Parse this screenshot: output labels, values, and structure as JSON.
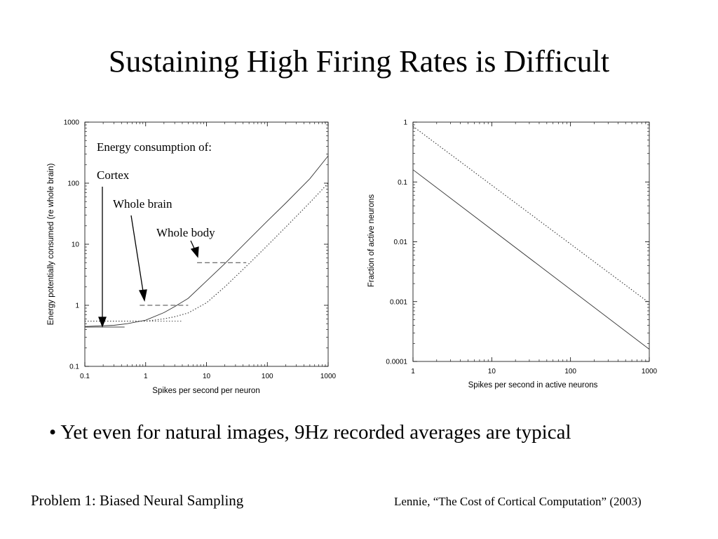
{
  "slide": {
    "title": "Sustaining High Firing Rates is Difficult",
    "bullet": "• Yet even for natural images, 9Hz recorded averages are typical",
    "footer_left": "Problem 1: Biased Neural Sampling",
    "footer_right": "Lennie, “The Cost of Cortical Computation” (2003)"
  },
  "chart_data": [
    {
      "type": "line",
      "xscale": "log",
      "yscale": "log",
      "xlim": [
        0.1,
        1000
      ],
      "ylim": [
        0.1,
        1000
      ],
      "x_ticks": [
        "0.1",
        "1",
        "10",
        "100",
        "1000"
      ],
      "y_ticks": [
        "0.1",
        "1",
        "10",
        "100",
        "1000"
      ],
      "xlabel": "Spikes per second per neuron",
      "ylabel": "Energy potentially consumed (re whole brain)",
      "annotations": [
        "Energy consumption of:",
        "Cortex",
        "Whole brain",
        "Whole body"
      ],
      "series": [
        {
          "name": "Cortex",
          "style": "solid",
          "x": [
            0.1,
            0.3,
            0.5,
            1,
            2,
            3,
            5,
            10,
            20,
            50,
            100,
            200,
            500,
            1000
          ],
          "y": [
            0.45,
            0.47,
            0.5,
            0.57,
            0.76,
            0.95,
            1.3,
            2.5,
            4.8,
            12,
            24,
            47,
            118,
            280
          ]
        },
        {
          "name": "Whole body",
          "style": "dotted",
          "x": [
            0.1,
            1,
            2,
            3,
            5,
            10,
            20,
            50,
            100,
            200,
            500,
            1000
          ],
          "y": [
            0.55,
            0.55,
            0.6,
            0.65,
            0.75,
            1.1,
            2.0,
            4.8,
            9.5,
            19,
            48,
            100
          ]
        }
      ],
      "reference_segments": [
        {
          "label": "Cortex",
          "style": "solid",
          "x": [
            0.1,
            0.45
          ],
          "y": 0.44
        },
        {
          "label": "Whole body",
          "style": "dotted",
          "x": [
            0.75,
            3.9
          ],
          "y": 0.55
        },
        {
          "label": "Whole brain",
          "style": "dashed",
          "x": [
            0.8,
            5
          ],
          "y": 1.0
        },
        {
          "label": "Whole body",
          "style": "dashed",
          "x": [
            7,
            45
          ],
          "y": 5.0
        }
      ]
    },
    {
      "type": "line",
      "xscale": "log",
      "yscale": "log",
      "xlim": [
        1,
        1000
      ],
      "ylim": [
        0.0001,
        1
      ],
      "x_ticks": [
        "1",
        "10",
        "100",
        "1000"
      ],
      "y_ticks": [
        "0.0001",
        "0.001",
        "0.01",
        "0.1",
        "1"
      ],
      "xlabel": "Spikes per second in active neurons",
      "ylabel": "Fraction of active neurons",
      "series": [
        {
          "style": "solid",
          "x": [
            1,
            1000
          ],
          "y": [
            0.16,
            0.00016
          ]
        },
        {
          "style": "dotted",
          "x": [
            1,
            1000
          ],
          "y": [
            0.85,
            0.00095
          ]
        }
      ]
    }
  ]
}
